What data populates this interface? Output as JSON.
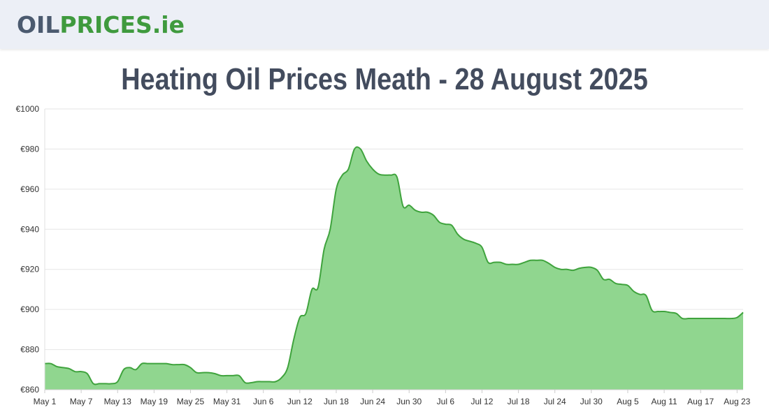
{
  "header": {
    "logo_part1": "OIL",
    "logo_part2": "PRICES",
    "logo_part3": ".ie"
  },
  "colors": {
    "line": "#3fa33d",
    "fill": "#90d68f",
    "grid": "#e6e6e6"
  },
  "chart_data": {
    "type": "area",
    "title": "Heating Oil Prices Meath - 28 August 2025",
    "xlabel": "",
    "ylabel": "",
    "ylim": [
      860,
      1000
    ],
    "y_ticks": [
      "€860",
      "€880",
      "€900",
      "€920",
      "€940",
      "€960",
      "€980",
      "€1000"
    ],
    "y_tick_values": [
      860,
      880,
      900,
      920,
      940,
      960,
      980,
      1000
    ],
    "x_tick_labels": [
      "May 1",
      "May 7",
      "May 13",
      "May 19",
      "May 25",
      "May 31",
      "Jun 6",
      "Jun 12",
      "Jun 18",
      "Jun 24",
      "Jun 30",
      "Jul 6",
      "Jul 12",
      "Jul 18",
      "Jul 24",
      "Jul 30",
      "Aug 5",
      "Aug 11",
      "Aug 17",
      "Aug 23"
    ],
    "x_start": "May 1",
    "x_end": "Aug 28",
    "grid": true,
    "series": [
      {
        "values": [
          873,
          873,
          871.5,
          871,
          870.5,
          869,
          869,
          868,
          863,
          863,
          863,
          863,
          864,
          870,
          871,
          870,
          873,
          873,
          873,
          873,
          873,
          872.5,
          872.5,
          872.5,
          871,
          868.5,
          868.5,
          868.5,
          868,
          867,
          867,
          867,
          867,
          863.5,
          863.5,
          864,
          864,
          864,
          864,
          866,
          871,
          885,
          896,
          898,
          910,
          911,
          930,
          940,
          960,
          967,
          970,
          980,
          980,
          974,
          970,
          967.5,
          967,
          967,
          966,
          951.5,
          952,
          949.5,
          948.5,
          948.5,
          947,
          943.5,
          942.5,
          942,
          937.5,
          935,
          934,
          933,
          931,
          923.5,
          923.5,
          923.5,
          922.5,
          922.5,
          922.5,
          923.5,
          924.5,
          924.5,
          924.5,
          923,
          921,
          920,
          920,
          919.5,
          920.5,
          921,
          921,
          919.5,
          915,
          915,
          913,
          912.5,
          912,
          909,
          907.5,
          907,
          899.5,
          899,
          899,
          898.5,
          898,
          895.5,
          895.5,
          895.5,
          895.5,
          895.5,
          895.5,
          895.5,
          895.5,
          895.5,
          896,
          898.5
        ]
      }
    ]
  }
}
